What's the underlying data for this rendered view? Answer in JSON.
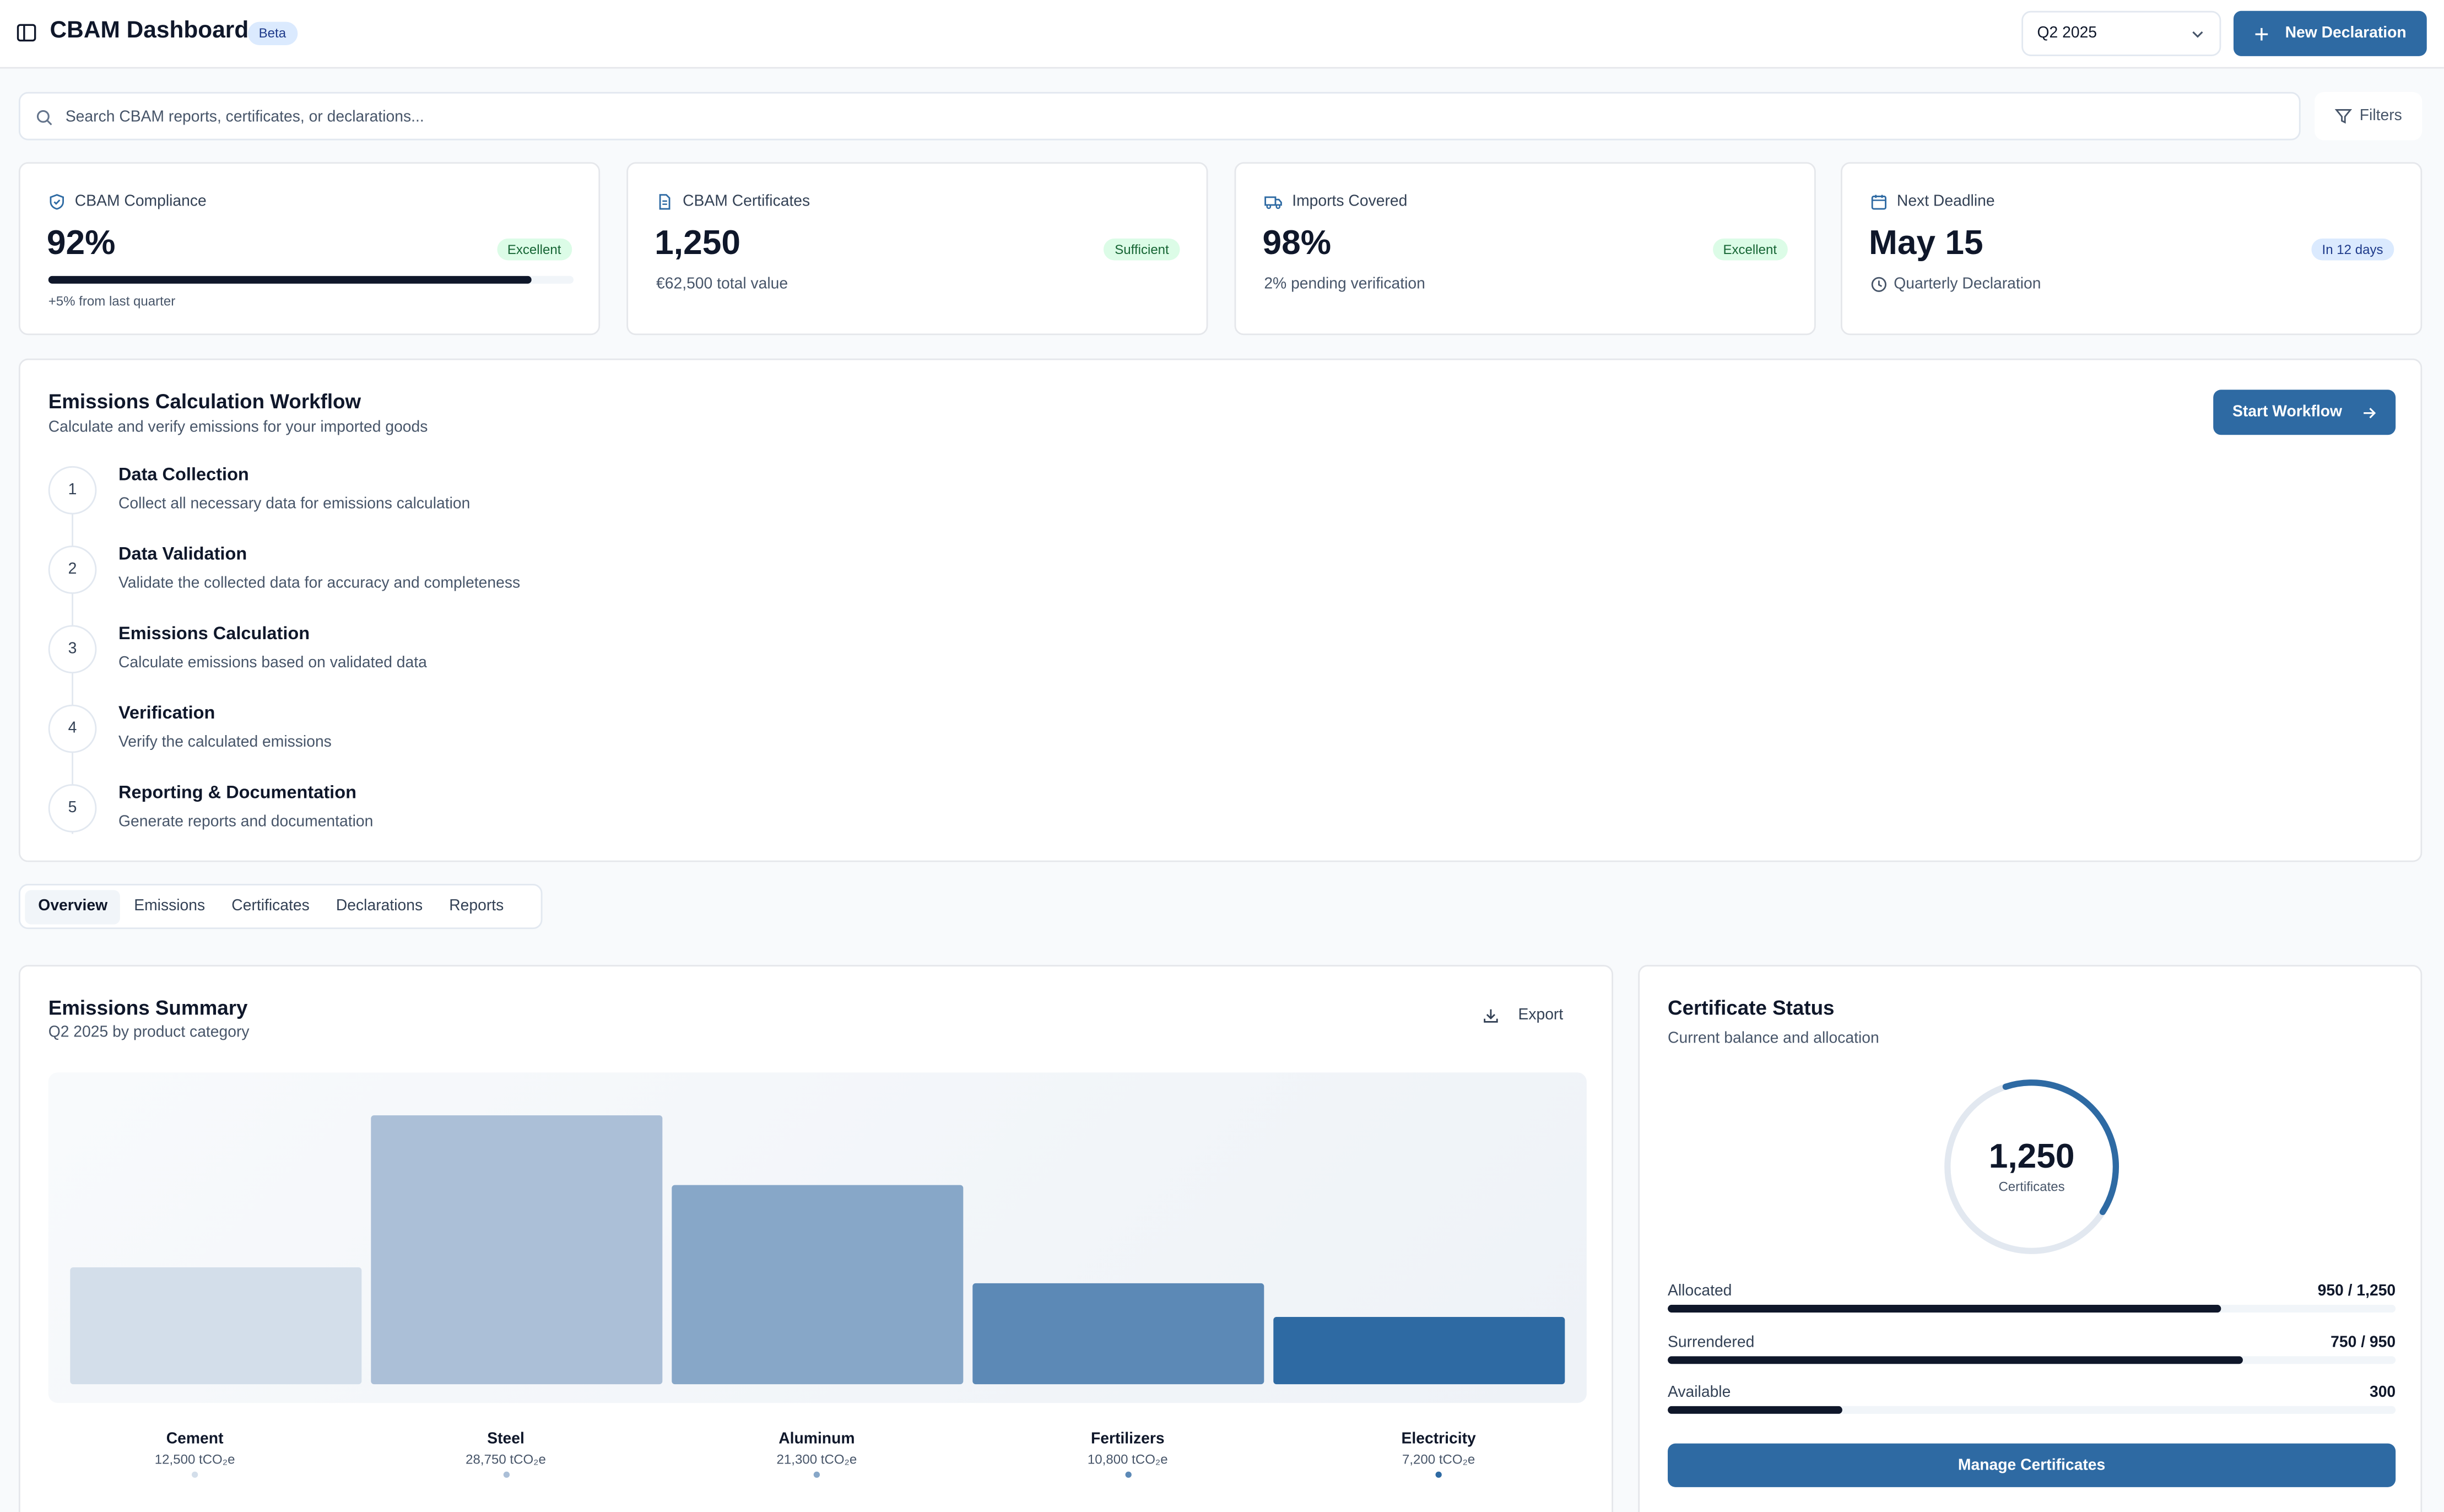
{
  "header": {
    "title": "CBAM Dashboard",
    "badge": "Beta",
    "period": "Q2 2025",
    "new_button": "New Declaration"
  },
  "search": {
    "placeholder": "Search CBAM reports, certificates, or declarations...",
    "filters_label": "Filters"
  },
  "stats": [
    {
      "label": "CBAM Compliance",
      "value": "92%",
      "badge": "Excellent",
      "progress": 92,
      "sub": "+5% from last quarter"
    },
    {
      "label": "CBAM Certificates",
      "value": "1,250",
      "badge": "Sufficient",
      "sub": "€62,500 total value"
    },
    {
      "label": "Imports Covered",
      "value": "98%",
      "badge": "Excellent",
      "sub": "2% pending verification"
    },
    {
      "label": "Next Deadline",
      "value": "May 15",
      "badge": "In 12 days",
      "sub": "Quarterly Declaration"
    }
  ],
  "workflow": {
    "title": "Emissions Calculation Workflow",
    "subtitle": "Calculate and verify emissions for your imported goods",
    "start_button": "Start Workflow",
    "steps": [
      {
        "num": "1",
        "title": "Data Collection",
        "desc": "Collect all necessary data for emissions calculation"
      },
      {
        "num": "2",
        "title": "Data Validation",
        "desc": "Validate the collected data for accuracy and completeness"
      },
      {
        "num": "3",
        "title": "Emissions Calculation",
        "desc": "Calculate emissions based on validated data"
      },
      {
        "num": "4",
        "title": "Verification",
        "desc": "Verify the calculated emissions"
      },
      {
        "num": "5",
        "title": "Reporting & Documentation",
        "desc": "Generate reports and documentation"
      }
    ]
  },
  "tabs": [
    "Overview",
    "Emissions",
    "Certificates",
    "Declarations",
    "Reports"
  ],
  "emissions": {
    "title": "Emissions Summary",
    "subtitle": "Q2 2025 by product category",
    "export_label": "Export"
  },
  "chart_data": {
    "type": "bar",
    "title": "Emissions Summary",
    "categories": [
      "Cement",
      "Steel",
      "Aluminum",
      "Fertilizers",
      "Electricity"
    ],
    "values": [
      12500,
      28750,
      21300,
      10800,
      7200
    ],
    "value_labels": [
      "12,500 tCO₂e",
      "28,750 tCO₂e",
      "21,300 tCO₂e",
      "10,800 tCO₂e",
      "7,200 tCO₂e"
    ],
    "colors": [
      "#d3deea",
      "#abbfd7",
      "#87a7c8",
      "#5c89b6",
      "#2e6aa3"
    ],
    "xlabel": "",
    "ylabel": "tCO₂e",
    "ylim": [
      0,
      32000
    ]
  },
  "certificates": {
    "title": "Certificate Status",
    "subtitle": "Current balance and allocation",
    "total": "1,250",
    "total_label": "Certificates",
    "ring_fraction": 0.39,
    "rows": [
      {
        "name": "Allocated",
        "value": "950 / 1,250",
        "fraction": 0.76
      },
      {
        "name": "Surrendered",
        "value": "750 / 950",
        "fraction": 0.79
      },
      {
        "name": "Available",
        "value": "300",
        "fraction": 0.24
      }
    ],
    "manage_button": "Manage Certificates"
  },
  "colors": {
    "primary": "#2e6aa3",
    "dark": "#0f172a",
    "green_bg": "#dcfce7",
    "blue_bg": "#dbeafe"
  }
}
